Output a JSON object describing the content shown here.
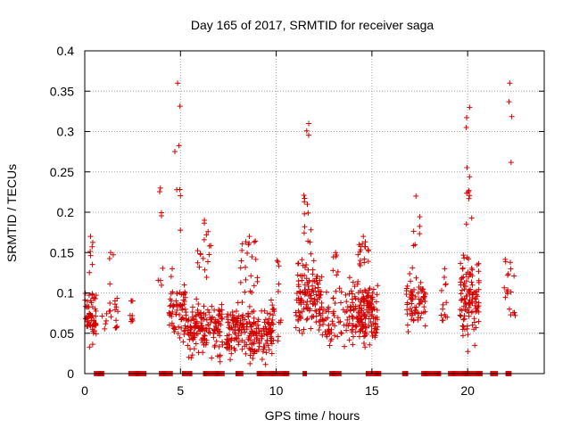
{
  "chart_data": {
    "type": "scatter",
    "title": "Day 165 of 2017, SRMTID for receiver saga",
    "xlabel": "GPS time / hours",
    "ylabel": "SRMTID / TECUs",
    "xlim": [
      0,
      24
    ],
    "ylim": [
      0,
      0.4
    ],
    "xticks": [
      0,
      5,
      10,
      15,
      20
    ],
    "yticks": [
      0,
      0.05,
      0.1,
      0.15,
      0.2,
      0.25,
      0.3,
      0.35,
      0.4
    ],
    "xtick_labels": [
      "0",
      "5",
      "10",
      "15",
      "20"
    ],
    "ytick_labels": [
      "0",
      "0.05",
      "0.1",
      "0.15",
      "0.2",
      "0.25",
      "0.3",
      "0.35",
      "0.4"
    ],
    "grid": true,
    "marker": "+",
    "color": "#d40000",
    "clusters": [
      {
        "x_range": [
          0.0,
          0.6
        ],
        "y_range": [
          0.02,
          0.12
        ],
        "count": 60,
        "peak": 0.17
      },
      {
        "x_range": [
          0.9,
          1.8
        ],
        "y_range": [
          0.03,
          0.11
        ],
        "count": 20,
        "peak": 0.15
      },
      {
        "x_range": [
          2.3,
          2.6
        ],
        "y_range": [
          0.04,
          0.09
        ],
        "count": 6,
        "peak": 0.09
      },
      {
        "x_range": [
          3.8,
          4.1
        ],
        "y_range": [
          0.1,
          0.14
        ],
        "count": 4,
        "peak": 0.23
      },
      {
        "x_range": [
          4.4,
          5.3
        ],
        "y_range": [
          0.02,
          0.14
        ],
        "count": 70,
        "peak": 0.36
      },
      {
        "x_range": [
          5.3,
          7.2
        ],
        "y_range": [
          0.01,
          0.1
        ],
        "count": 160,
        "peak": 0.19
      },
      {
        "x_range": [
          7.4,
          9.8
        ],
        "y_range": [
          0.005,
          0.1
        ],
        "count": 220,
        "peak": 0.17
      },
      {
        "x_range": [
          9.8,
          10.3
        ],
        "y_range": [
          0.03,
          0.11
        ],
        "count": 15,
        "peak": 0.14
      },
      {
        "x_range": [
          11.0,
          12.4
        ],
        "y_range": [
          0.03,
          0.16
        ],
        "count": 130,
        "peak": 0.31
      },
      {
        "x_range": [
          12.4,
          13.8
        ],
        "y_range": [
          0.02,
          0.12
        ],
        "count": 60,
        "peak": 0.15
      },
      {
        "x_range": [
          13.8,
          15.3
        ],
        "y_range": [
          0.02,
          0.13
        ],
        "count": 170,
        "peak": 0.17
      },
      {
        "x_range": [
          16.8,
          17.8
        ],
        "y_range": [
          0.04,
          0.13
        ],
        "count": 70,
        "peak": 0.22
      },
      {
        "x_range": [
          18.6,
          19.0
        ],
        "y_range": [
          0.05,
          0.11
        ],
        "count": 10,
        "peak": 0.13
      },
      {
        "x_range": [
          19.6,
          20.6
        ],
        "y_range": [
          0.02,
          0.16
        ],
        "count": 110,
        "peak": 0.33
      },
      {
        "x_range": [
          21.9,
          22.5
        ],
        "y_range": [
          0.05,
          0.16
        ],
        "count": 18,
        "peak": 0.36
      }
    ],
    "zero_segments": [
      [
        0.5,
        1.0
      ],
      [
        2.3,
        3.2
      ],
      [
        3.9,
        4.6
      ],
      [
        5.1,
        5.6
      ],
      [
        6.2,
        7.3
      ],
      [
        7.9,
        8.3
      ],
      [
        9.0,
        10.7
      ],
      [
        11.4,
        11.6
      ],
      [
        12.8,
        13.4
      ],
      [
        14.7,
        15.5
      ],
      [
        16.6,
        16.9
      ],
      [
        17.6,
        18.6
      ],
      [
        19.0,
        20.8
      ],
      [
        21.2,
        21.6
      ],
      [
        22.0,
        22.3
      ]
    ]
  }
}
